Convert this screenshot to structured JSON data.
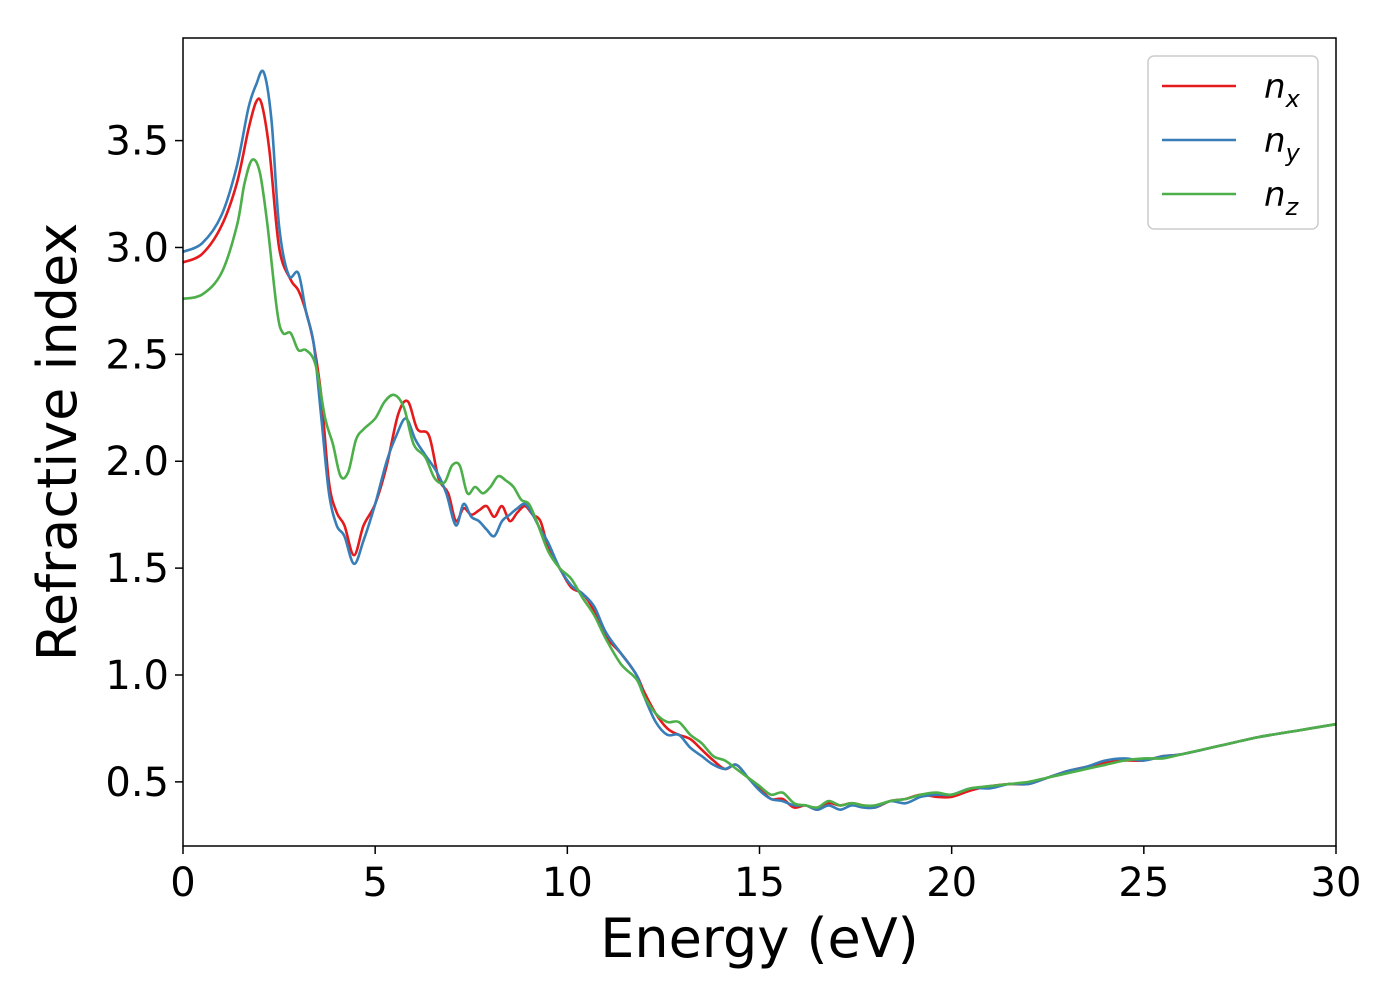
{
  "chart_data": {
    "type": "line",
    "title": "",
    "xlabel": "Energy (eV)",
    "ylabel": "Refractive index",
    "xlim": [
      0,
      30
    ],
    "ylim": [
      0.2,
      3.98
    ],
    "xticks": [
      0,
      5,
      10,
      15,
      20,
      25,
      30
    ],
    "yticks": [
      0.5,
      1.0,
      1.5,
      2.0,
      2.5,
      3.0,
      3.5
    ],
    "xtick_labels": [
      "0",
      "5",
      "10",
      "15",
      "20",
      "25",
      "30"
    ],
    "ytick_labels": [
      "0.5",
      "1.0",
      "1.5",
      "2.0",
      "2.5",
      "3.0",
      "3.5"
    ],
    "grid": false,
    "legend_position": "top-right",
    "series": [
      {
        "name": "n_x",
        "label_base": "n",
        "label_sub": "x",
        "color": "#e41a1c",
        "x": [
          0,
          0.5,
          1.0,
          1.4,
          1.7,
          1.9,
          2.05,
          2.25,
          2.5,
          2.8,
          3.0,
          3.2,
          3.4,
          3.6,
          3.8,
          4.0,
          4.2,
          4.45,
          4.7,
          5.0,
          5.3,
          5.6,
          5.85,
          6.1,
          6.4,
          6.65,
          6.9,
          7.1,
          7.3,
          7.5,
          7.7,
          7.9,
          8.1,
          8.3,
          8.5,
          8.7,
          8.9,
          9.1,
          9.3,
          9.5,
          9.8,
          10.1,
          10.4,
          10.7,
          11.0,
          11.4,
          11.8,
          12.0,
          12.3,
          12.6,
          12.9,
          13.2,
          13.5,
          13.8,
          14.1,
          14.4,
          14.7,
          15.0,
          15.3,
          15.6,
          15.9,
          16.2,
          16.5,
          16.8,
          17.1,
          17.4,
          17.7,
          18.0,
          18.4,
          18.8,
          19.2,
          19.6,
          20.0,
          20.5,
          21.0,
          21.5,
          22.0,
          22.5,
          23.0,
          23.5,
          24.0,
          24.5,
          25.0,
          25.5,
          26.0,
          27.0,
          28.0,
          29.0,
          30.0
        ],
        "y": [
          2.93,
          2.97,
          3.1,
          3.3,
          3.55,
          3.68,
          3.67,
          3.45,
          3.0,
          2.85,
          2.8,
          2.7,
          2.55,
          2.3,
          1.9,
          1.76,
          1.7,
          1.56,
          1.7,
          1.8,
          1.98,
          2.22,
          2.28,
          2.15,
          2.12,
          1.92,
          1.85,
          1.72,
          1.78,
          1.75,
          1.77,
          1.79,
          1.74,
          1.79,
          1.72,
          1.76,
          1.79,
          1.75,
          1.72,
          1.6,
          1.5,
          1.41,
          1.38,
          1.3,
          1.18,
          1.1,
          1.0,
          0.92,
          0.82,
          0.75,
          0.72,
          0.7,
          0.65,
          0.6,
          0.56,
          0.58,
          0.52,
          0.47,
          0.42,
          0.42,
          0.38,
          0.39,
          0.37,
          0.4,
          0.39,
          0.4,
          0.39,
          0.38,
          0.41,
          0.42,
          0.44,
          0.43,
          0.43,
          0.46,
          0.48,
          0.49,
          0.49,
          0.52,
          0.55,
          0.57,
          0.59,
          0.6,
          0.6,
          0.62,
          0.63,
          0.67,
          0.71,
          0.74,
          0.77
        ]
      },
      {
        "name": "n_y",
        "label_base": "n",
        "label_sub": "y",
        "color": "#377eb8",
        "x": [
          0,
          0.5,
          1.0,
          1.4,
          1.7,
          1.9,
          2.1,
          2.3,
          2.5,
          2.75,
          3.0,
          3.2,
          3.4,
          3.6,
          3.8,
          4.0,
          4.2,
          4.45,
          4.7,
          5.0,
          5.3,
          5.55,
          5.8,
          6.05,
          6.3,
          6.6,
          6.85,
          7.1,
          7.3,
          7.5,
          7.7,
          7.9,
          8.1,
          8.3,
          8.5,
          8.7,
          8.9,
          9.1,
          9.3,
          9.5,
          9.8,
          10.1,
          10.4,
          10.7,
          11.0,
          11.4,
          11.8,
          12.0,
          12.3,
          12.6,
          12.9,
          13.2,
          13.5,
          13.8,
          14.1,
          14.4,
          14.7,
          15.0,
          15.3,
          15.6,
          15.9,
          16.2,
          16.5,
          16.8,
          17.1,
          17.4,
          17.7,
          18.0,
          18.4,
          18.8,
          19.2,
          19.6,
          20.0,
          20.5,
          21.0,
          21.5,
          22.0,
          22.5,
          23.0,
          23.5,
          24.0,
          24.5,
          25.0,
          25.5,
          26.0,
          27.0,
          28.0,
          29.0,
          30.0
        ],
        "y": [
          2.98,
          3.02,
          3.15,
          3.38,
          3.65,
          3.76,
          3.82,
          3.6,
          3.1,
          2.87,
          2.88,
          2.7,
          2.55,
          2.2,
          1.85,
          1.7,
          1.65,
          1.52,
          1.63,
          1.8,
          2.0,
          2.12,
          2.2,
          2.1,
          2.03,
          1.95,
          1.85,
          1.7,
          1.8,
          1.74,
          1.72,
          1.68,
          1.65,
          1.72,
          1.75,
          1.78,
          1.8,
          1.75,
          1.68,
          1.62,
          1.5,
          1.42,
          1.38,
          1.32,
          1.2,
          1.1,
          1.0,
          0.9,
          0.78,
          0.72,
          0.72,
          0.66,
          0.62,
          0.58,
          0.56,
          0.58,
          0.52,
          0.46,
          0.42,
          0.41,
          0.39,
          0.39,
          0.37,
          0.39,
          0.37,
          0.39,
          0.38,
          0.38,
          0.41,
          0.4,
          0.43,
          0.44,
          0.44,
          0.47,
          0.47,
          0.49,
          0.49,
          0.52,
          0.55,
          0.57,
          0.6,
          0.61,
          0.6,
          0.62,
          0.63,
          0.67,
          0.71,
          0.74,
          0.77
        ]
      },
      {
        "name": "n_z",
        "label_base": "n",
        "label_sub": "z",
        "color": "#4daf4a",
        "x": [
          0,
          0.5,
          1.0,
          1.4,
          1.6,
          1.8,
          2.0,
          2.2,
          2.45,
          2.6,
          2.8,
          3.0,
          3.2,
          3.45,
          3.7,
          3.9,
          4.1,
          4.3,
          4.5,
          4.7,
          5.0,
          5.25,
          5.5,
          5.75,
          6.0,
          6.3,
          6.55,
          6.8,
          7.0,
          7.2,
          7.4,
          7.6,
          7.8,
          8.0,
          8.2,
          8.4,
          8.6,
          8.8,
          9.0,
          9.2,
          9.5,
          9.8,
          10.1,
          10.4,
          10.7,
          11.0,
          11.4,
          11.8,
          12.0,
          12.3,
          12.6,
          12.9,
          13.2,
          13.5,
          13.8,
          14.1,
          14.4,
          14.7,
          15.0,
          15.3,
          15.6,
          15.9,
          16.2,
          16.5,
          16.8,
          17.1,
          17.4,
          17.7,
          18.0,
          18.4,
          18.8,
          19.2,
          19.6,
          20.0,
          20.5,
          21.0,
          21.5,
          22.0,
          22.5,
          23.0,
          23.5,
          24.0,
          24.5,
          25.0,
          25.5,
          26.0,
          27.0,
          28.0,
          29.0,
          30.0
        ],
        "y": [
          2.76,
          2.78,
          2.88,
          3.1,
          3.3,
          3.41,
          3.35,
          3.1,
          2.7,
          2.6,
          2.6,
          2.52,
          2.52,
          2.45,
          2.2,
          2.08,
          1.93,
          1.95,
          2.1,
          2.15,
          2.2,
          2.28,
          2.31,
          2.25,
          2.08,
          2.02,
          1.92,
          1.9,
          1.98,
          1.98,
          1.85,
          1.88,
          1.85,
          1.88,
          1.93,
          1.91,
          1.88,
          1.82,
          1.8,
          1.72,
          1.58,
          1.5,
          1.45,
          1.36,
          1.28,
          1.17,
          1.05,
          0.98,
          0.9,
          0.82,
          0.78,
          0.78,
          0.72,
          0.68,
          0.62,
          0.6,
          0.56,
          0.52,
          0.48,
          0.44,
          0.45,
          0.4,
          0.39,
          0.38,
          0.41,
          0.39,
          0.4,
          0.39,
          0.39,
          0.41,
          0.42,
          0.44,
          0.45,
          0.44,
          0.47,
          0.48,
          0.49,
          0.5,
          0.52,
          0.54,
          0.56,
          0.58,
          0.6,
          0.61,
          0.61,
          0.63,
          0.67,
          0.71,
          0.74,
          0.77
        ]
      }
    ]
  }
}
